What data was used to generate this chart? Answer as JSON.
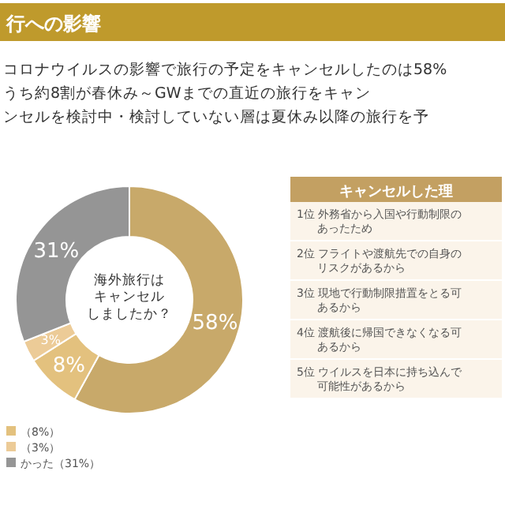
{
  "chart_data": [
    {
      "type": "donut",
      "title": "行への影響",
      "subtitle": "コロナウイルスの影響で旅行の予定をキャンセルしたのは58%",
      "categories": [
        null,
        "（8%）",
        "（3%）",
        "かった（31%）"
      ],
      "values": [
        58,
        8,
        3,
        31
      ],
      "colors": [
        "#c8a96a",
        "#e3c17e",
        "#eccb97",
        "#959595"
      ],
      "value_labels": [
        "58%",
        "8%",
        "3%",
        "31%"
      ],
      "annotations": [
        "うち約8割が春休み～GWまでの直近の旅行をキャン",
        "ンセルを検討中・検討していない層は夏休み以降の旅行を予",
        "海外旅行はキャンセルしましたか？"
      ],
      "legend": "bottom left"
    },
    {
      "type": "other",
      "title": "キャンセルした理",
      "annotations": [
        "1位 外務省から入国や行動制限のあったため",
        "2位 フライトや渡航先での自身のリスクがあるから",
        "3位 現地で行動制限措置をとる可あるから",
        "4位 渡航後に帰国できなくなる可あるから",
        "5位 ウイルスを日本に持ち込んで可能性があるから"
      ]
    }
  ]
}
